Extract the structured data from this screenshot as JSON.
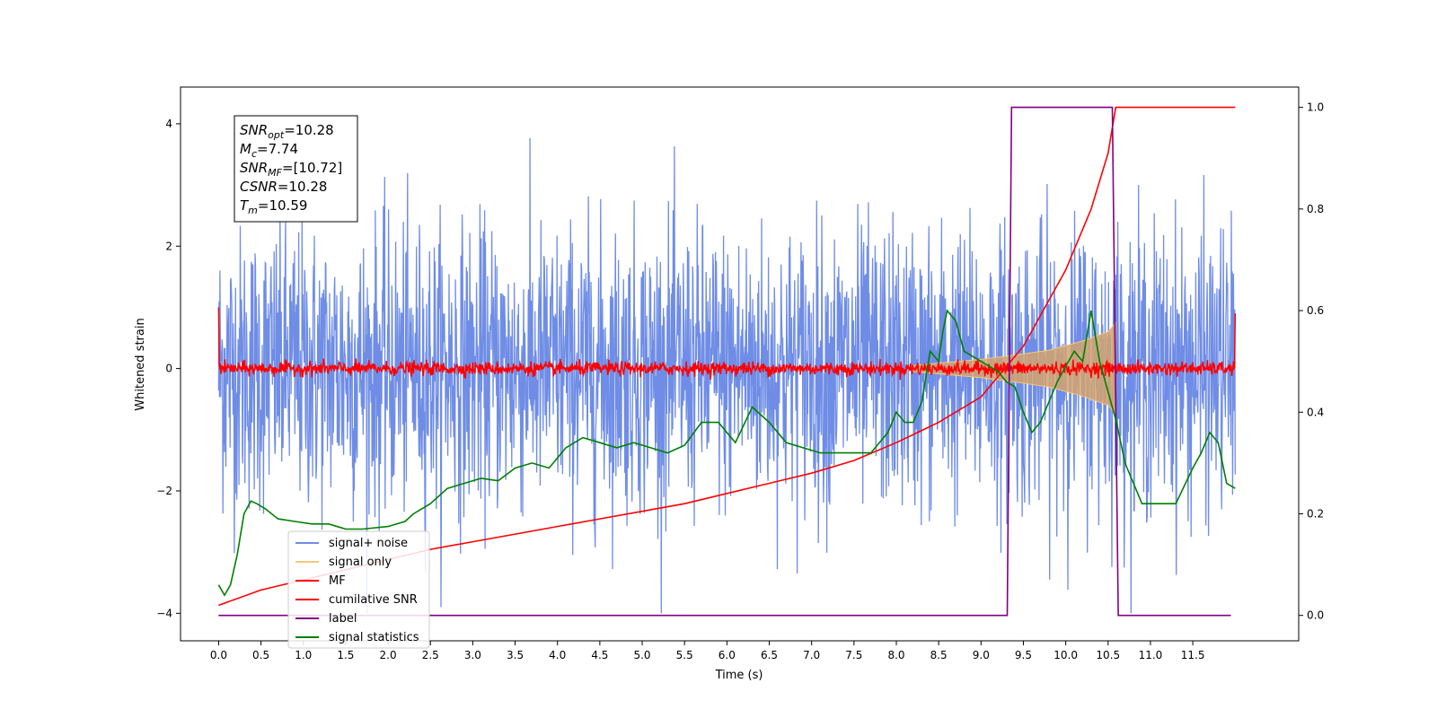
{
  "chart_data": {
    "type": "line",
    "xlabel": "Time (s)",
    "ylabel": "Whitened strain",
    "xlim": [
      -0.45,
      12.75
    ],
    "ylim": [
      -4.45,
      4.6
    ],
    "y2lim": [
      -0.05,
      1.04
    ],
    "x_ticks": [
      "0.0",
      "0.5",
      "1.0",
      "1.5",
      "2.0",
      "2.5",
      "3.0",
      "3.5",
      "4.0",
      "4.5",
      "5.0",
      "5.5",
      "6.0",
      "6.5",
      "7.0",
      "7.5",
      "8.0",
      "8.5",
      "9.0",
      "9.5",
      "10.0",
      "10.5",
      "11.0",
      "11.5"
    ],
    "y_ticks": [
      "4",
      "2",
      "0",
      "−2",
      "−4"
    ],
    "y2_ticks": [
      "0.0",
      "0.2",
      "0.4",
      "0.6",
      "0.8",
      "1.0"
    ],
    "grid": false,
    "legend_position": "lower-left",
    "annotation": [
      {
        "var": "SNR",
        "sub": "opt",
        "value": "=10.28"
      },
      {
        "var": "M",
        "sub": "c",
        "value": "=7.74"
      },
      {
        "var": "SNR",
        "sub": "MF",
        "value": "=[10.72]"
      },
      {
        "var": "CSNR",
        "sub": "",
        "value": "=10.28"
      },
      {
        "var": "T",
        "sub": "m",
        "value": "=10.59"
      }
    ],
    "series": [
      {
        "name": "signal+ noise",
        "color": "#6f8de6",
        "axis": "left",
        "description_values": {
          "t_start": 0.0,
          "t_end": 12.0,
          "envelope_typical": [
            -2.6,
            2.6
          ],
          "peak_max": 4.05,
          "peak_min": -4.05
        }
      },
      {
        "name": "signal only",
        "color": "#f5c77a",
        "axis": "left",
        "points": [
          [
            8.2,
            0.05
          ],
          [
            8.6,
            0.1
          ],
          [
            9.0,
            0.15
          ],
          [
            9.4,
            0.22
          ],
          [
            9.8,
            0.3
          ],
          [
            10.2,
            0.45
          ],
          [
            10.5,
            0.6
          ],
          [
            10.59,
            0.75
          ]
        ]
      },
      {
        "name": "MF",
        "color": "#ff0000",
        "axis": "left",
        "description_values": {
          "t_start": 0.0,
          "t_end": 12.0,
          "band": [
            -0.12,
            0.22
          ],
          "start_value": 1.0,
          "end_value": 0.9
        }
      },
      {
        "name": "cumilative SNR",
        "color": "#ff0000",
        "axis": "right",
        "points": [
          [
            0.0,
            0.02
          ],
          [
            0.5,
            0.05
          ],
          [
            1.0,
            0.07
          ],
          [
            1.5,
            0.09
          ],
          [
            2.0,
            0.11
          ],
          [
            2.5,
            0.13
          ],
          [
            3.0,
            0.145
          ],
          [
            3.5,
            0.16
          ],
          [
            4.0,
            0.175
          ],
          [
            4.5,
            0.19
          ],
          [
            5.0,
            0.205
          ],
          [
            5.5,
            0.22
          ],
          [
            6.0,
            0.24
          ],
          [
            6.5,
            0.26
          ],
          [
            7.0,
            0.28
          ],
          [
            7.5,
            0.305
          ],
          [
            8.0,
            0.34
          ],
          [
            8.5,
            0.38
          ],
          [
            9.0,
            0.43
          ],
          [
            9.5,
            0.53
          ],
          [
            10.0,
            0.68
          ],
          [
            10.3,
            0.8
          ],
          [
            10.5,
            0.91
          ],
          [
            10.59,
            1.0
          ],
          [
            12.0,
            1.0
          ]
        ]
      },
      {
        "name": "label",
        "color": "#800080",
        "axis": "right",
        "points": [
          [
            0.0,
            0.0
          ],
          [
            9.31,
            0.0
          ],
          [
            9.36,
            1.0
          ],
          [
            10.55,
            1.0
          ],
          [
            10.62,
            0.0
          ],
          [
            11.95,
            0.0
          ]
        ]
      },
      {
        "name": "signal statistics",
        "color": "#008000",
        "axis": "right",
        "points": [
          [
            0.0,
            0.06
          ],
          [
            0.07,
            0.04
          ],
          [
            0.14,
            0.06
          ],
          [
            0.22,
            0.12
          ],
          [
            0.3,
            0.2
          ],
          [
            0.38,
            0.225
          ],
          [
            0.45,
            0.22
          ],
          [
            0.55,
            0.21
          ],
          [
            0.7,
            0.19
          ],
          [
            0.9,
            0.185
          ],
          [
            1.1,
            0.18
          ],
          [
            1.3,
            0.18
          ],
          [
            1.5,
            0.17
          ],
          [
            1.7,
            0.17
          ],
          [
            2.0,
            0.175
          ],
          [
            2.2,
            0.185
          ],
          [
            2.3,
            0.2
          ],
          [
            2.5,
            0.22
          ],
          [
            2.7,
            0.25
          ],
          [
            2.9,
            0.26
          ],
          [
            3.1,
            0.27
          ],
          [
            3.3,
            0.265
          ],
          [
            3.5,
            0.29
          ],
          [
            3.7,
            0.3
          ],
          [
            3.9,
            0.29
          ],
          [
            4.1,
            0.33
          ],
          [
            4.3,
            0.35
          ],
          [
            4.5,
            0.34
          ],
          [
            4.7,
            0.33
          ],
          [
            4.9,
            0.34
          ],
          [
            5.1,
            0.33
          ],
          [
            5.3,
            0.32
          ],
          [
            5.5,
            0.335
          ],
          [
            5.7,
            0.38
          ],
          [
            5.9,
            0.38
          ],
          [
            6.1,
            0.34
          ],
          [
            6.3,
            0.41
          ],
          [
            6.5,
            0.38
          ],
          [
            6.7,
            0.34
          ],
          [
            6.9,
            0.33
          ],
          [
            7.1,
            0.32
          ],
          [
            7.3,
            0.32
          ],
          [
            7.5,
            0.32
          ],
          [
            7.7,
            0.32
          ],
          [
            7.9,
            0.36
          ],
          [
            8.0,
            0.4
          ],
          [
            8.1,
            0.38
          ],
          [
            8.2,
            0.38
          ],
          [
            8.3,
            0.42
          ],
          [
            8.4,
            0.52
          ],
          [
            8.5,
            0.5
          ],
          [
            8.55,
            0.56
          ],
          [
            8.6,
            0.6
          ],
          [
            8.7,
            0.58
          ],
          [
            8.8,
            0.52
          ],
          [
            9.0,
            0.5
          ],
          [
            9.1,
            0.49
          ],
          [
            9.2,
            0.48
          ],
          [
            9.3,
            0.46
          ],
          [
            9.4,
            0.45
          ],
          [
            9.5,
            0.4
          ],
          [
            9.6,
            0.36
          ],
          [
            9.7,
            0.38
          ],
          [
            9.8,
            0.42
          ],
          [
            9.9,
            0.46
          ],
          [
            10.0,
            0.49
          ],
          [
            10.1,
            0.52
          ],
          [
            10.2,
            0.5
          ],
          [
            10.3,
            0.6
          ],
          [
            10.4,
            0.5
          ],
          [
            10.5,
            0.44
          ],
          [
            10.6,
            0.38
          ],
          [
            10.7,
            0.3
          ],
          [
            10.8,
            0.26
          ],
          [
            10.9,
            0.22
          ],
          [
            11.0,
            0.22
          ],
          [
            11.3,
            0.22
          ],
          [
            11.5,
            0.29
          ],
          [
            11.6,
            0.32
          ],
          [
            11.7,
            0.36
          ],
          [
            11.8,
            0.34
          ],
          [
            11.9,
            0.26
          ],
          [
            12.0,
            0.25
          ]
        ]
      }
    ]
  }
}
